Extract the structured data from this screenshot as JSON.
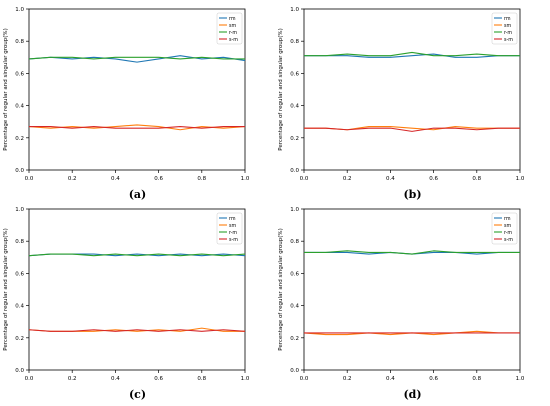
{
  "figure": {
    "captions": [
      "(a)",
      "(b)",
      "(c)",
      "(d)"
    ]
  },
  "colors": {
    "rm": "#1f77b4",
    "sm": "#ff7f0e",
    "r-m": "#2ca02c",
    "s-m": "#d62728"
  },
  "chart_data": [
    {
      "type": "line",
      "xlabel": "Percentage of embedding capacity(%)",
      "ylabel": "Percentage of regular and singular group(%)",
      "xlim": [
        0.0,
        1.0
      ],
      "ylim": [
        0.0,
        1.0
      ],
      "xticks": [
        "0.0",
        "0.2",
        "0.4",
        "0.6",
        "0.8",
        "1.0"
      ],
      "yticks": [
        "0.0",
        "0.2",
        "0.4",
        "0.6",
        "0.8",
        "1.0"
      ],
      "legend": "top-right",
      "x": [
        0.0,
        0.1,
        0.2,
        0.3,
        0.4,
        0.5,
        0.6,
        0.7,
        0.8,
        0.9,
        1.0
      ],
      "series": [
        {
          "name": "rm",
          "color": "#1f77b4",
          "values": [
            0.69,
            0.7,
            0.69,
            0.7,
            0.69,
            0.67,
            0.69,
            0.71,
            0.69,
            0.7,
            0.68
          ]
        },
        {
          "name": "sm",
          "color": "#ff7f0e",
          "values": [
            0.27,
            0.26,
            0.27,
            0.26,
            0.27,
            0.28,
            0.27,
            0.25,
            0.27,
            0.26,
            0.27
          ]
        },
        {
          "name": "r-m",
          "color": "#2ca02c",
          "values": [
            0.69,
            0.7,
            0.7,
            0.69,
            0.7,
            0.7,
            0.7,
            0.69,
            0.7,
            0.69,
            0.69
          ]
        },
        {
          "name": "s-m",
          "color": "#d62728",
          "values": [
            0.27,
            0.27,
            0.26,
            0.27,
            0.26,
            0.26,
            0.26,
            0.27,
            0.26,
            0.27,
            0.27
          ]
        }
      ]
    },
    {
      "type": "line",
      "xlabel": "Percentage of embedding capacity(%)",
      "ylabel": "Percentage of regular and singular group(%)",
      "xlim": [
        0.0,
        1.0
      ],
      "ylim": [
        0.0,
        1.0
      ],
      "xticks": [
        "0.0",
        "0.2",
        "0.4",
        "0.6",
        "0.8",
        "1.0"
      ],
      "yticks": [
        "0.0",
        "0.2",
        "0.4",
        "0.6",
        "0.8",
        "1.0"
      ],
      "legend": "top-right",
      "x": [
        0.0,
        0.1,
        0.2,
        0.3,
        0.4,
        0.5,
        0.6,
        0.7,
        0.8,
        0.9,
        1.0
      ],
      "series": [
        {
          "name": "rm",
          "color": "#1f77b4",
          "values": [
            0.71,
            0.71,
            0.71,
            0.7,
            0.7,
            0.71,
            0.72,
            0.7,
            0.7,
            0.71,
            0.71
          ]
        },
        {
          "name": "sm",
          "color": "#ff7f0e",
          "values": [
            0.26,
            0.26,
            0.25,
            0.27,
            0.27,
            0.26,
            0.25,
            0.27,
            0.26,
            0.26,
            0.26
          ]
        },
        {
          "name": "r-m",
          "color": "#2ca02c",
          "values": [
            0.71,
            0.71,
            0.72,
            0.71,
            0.71,
            0.73,
            0.71,
            0.71,
            0.72,
            0.71,
            0.71
          ]
        },
        {
          "name": "s-m",
          "color": "#d62728",
          "values": [
            0.26,
            0.26,
            0.25,
            0.26,
            0.26,
            0.24,
            0.26,
            0.26,
            0.25,
            0.26,
            0.26
          ]
        }
      ]
    },
    {
      "type": "line",
      "xlabel": "Percentage of embedding capacity(%)",
      "ylabel": "Percentage of regular and singular group(%)",
      "xlim": [
        0.0,
        1.0
      ],
      "ylim": [
        0.0,
        1.0
      ],
      "xticks": [
        "0.0",
        "0.2",
        "0.4",
        "0.6",
        "0.8",
        "1.0"
      ],
      "yticks": [
        "0.0",
        "0.2",
        "0.4",
        "0.6",
        "0.8",
        "1.0"
      ],
      "legend": "top-right",
      "x": [
        0.0,
        0.1,
        0.2,
        0.3,
        0.4,
        0.5,
        0.6,
        0.7,
        0.8,
        0.9,
        1.0
      ],
      "series": [
        {
          "name": "rm",
          "color": "#1f77b4",
          "values": [
            0.71,
            0.72,
            0.72,
            0.72,
            0.71,
            0.72,
            0.71,
            0.72,
            0.71,
            0.72,
            0.71
          ]
        },
        {
          "name": "sm",
          "color": "#ff7f0e",
          "values": [
            0.25,
            0.24,
            0.24,
            0.24,
            0.25,
            0.24,
            0.25,
            0.24,
            0.26,
            0.24,
            0.24
          ]
        },
        {
          "name": "r-m",
          "color": "#2ca02c",
          "values": [
            0.71,
            0.72,
            0.72,
            0.71,
            0.72,
            0.71,
            0.72,
            0.71,
            0.72,
            0.71,
            0.72
          ]
        },
        {
          "name": "s-m",
          "color": "#d62728",
          "values": [
            0.25,
            0.24,
            0.24,
            0.25,
            0.24,
            0.25,
            0.24,
            0.25,
            0.24,
            0.25,
            0.24
          ]
        }
      ]
    },
    {
      "type": "line",
      "xlabel": "Percentage of embedding capacity(%)",
      "ylabel": "Percentage of regular and singular group(%)",
      "xlim": [
        0.0,
        1.0
      ],
      "ylim": [
        0.0,
        1.0
      ],
      "xticks": [
        "0.0",
        "0.2",
        "0.4",
        "0.6",
        "0.8",
        "1.0"
      ],
      "yticks": [
        "0.0",
        "0.2",
        "0.4",
        "0.6",
        "0.8",
        "1.0"
      ],
      "legend": "top-right",
      "x": [
        0.0,
        0.1,
        0.2,
        0.3,
        0.4,
        0.5,
        0.6,
        0.7,
        0.8,
        0.9,
        1.0
      ],
      "series": [
        {
          "name": "rm",
          "color": "#1f77b4",
          "values": [
            0.73,
            0.73,
            0.73,
            0.72,
            0.73,
            0.72,
            0.73,
            0.73,
            0.72,
            0.73,
            0.73
          ]
        },
        {
          "name": "sm",
          "color": "#ff7f0e",
          "values": [
            0.23,
            0.22,
            0.22,
            0.23,
            0.22,
            0.23,
            0.22,
            0.23,
            0.24,
            0.23,
            0.23
          ]
        },
        {
          "name": "r-m",
          "color": "#2ca02c",
          "values": [
            0.73,
            0.73,
            0.74,
            0.73,
            0.73,
            0.72,
            0.74,
            0.73,
            0.73,
            0.73,
            0.73
          ]
        },
        {
          "name": "s-m",
          "color": "#d62728",
          "values": [
            0.23,
            0.23,
            0.23,
            0.23,
            0.23,
            0.23,
            0.23,
            0.23,
            0.23,
            0.23,
            0.23
          ]
        }
      ]
    }
  ]
}
